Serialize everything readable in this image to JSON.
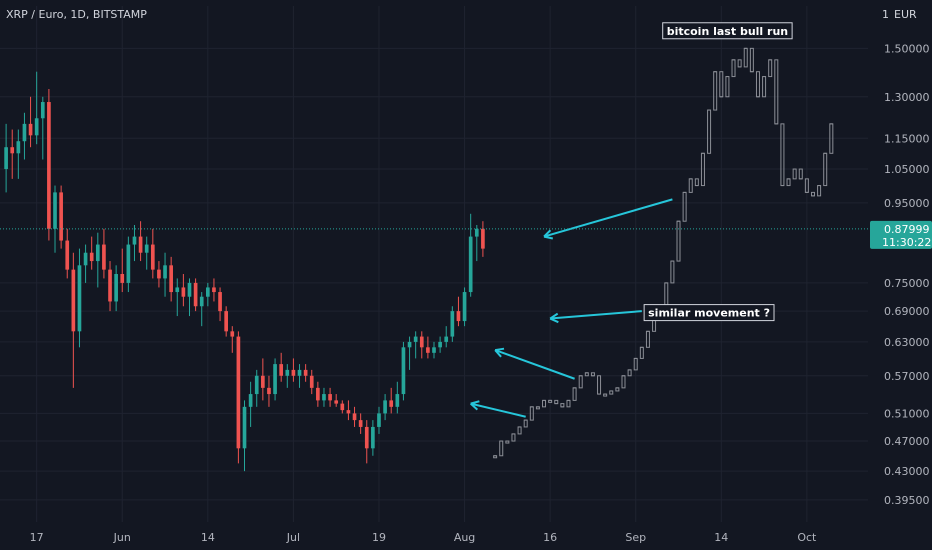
{
  "header": {
    "title": "XRP / Euro, 1D, BITSTAMP"
  },
  "currency_label": "EUR",
  "current_price": {
    "value": "0.87999",
    "countdown": "11:30:22",
    "color": "#26a69a"
  },
  "colors": {
    "background": "#131722",
    "grid": "#1f2330",
    "up": "#26a69a",
    "down": "#ef5350",
    "overlay": "#8b8e96",
    "arrow": "#26c6da"
  },
  "annotations": [
    {
      "id": "bull",
      "text": "bitcoin last bull run"
    },
    {
      "id": "similar",
      "text": "similar movement  ?"
    }
  ],
  "chart_data": {
    "type": "candlestick",
    "scale": "logarithmic",
    "title": "XRP / Euro, 1D, BITSTAMP",
    "ylim": [
      0.37,
      1.7
    ],
    "x_ticks": [
      "17",
      "Jun",
      "14",
      "Jul",
      "19",
      "Aug",
      "16",
      "Sep",
      "14",
      "Oct"
    ],
    "y_ticks": [
      "1.50000",
      "1.30000",
      "1.15000",
      "1.05000",
      "0.95000",
      "0.75000",
      "0.69000",
      "0.63000",
      "0.57000",
      "0.51000",
      "0.47000",
      "0.43000",
      "0.39500"
    ],
    "y_tick_values": [
      1.5,
      1.3,
      1.15,
      1.05,
      0.95,
      0.75,
      0.69,
      0.63,
      0.57,
      0.51,
      0.47,
      0.43,
      0.395
    ],
    "x_range_days": [
      -6,
      136
    ],
    "x_tick_days": [
      0,
      14,
      28,
      42,
      56,
      70,
      84,
      98,
      112,
      126
    ],
    "candles": [
      {
        "o": 1.05,
        "h": 1.2,
        "l": 0.98,
        "c": 1.12
      },
      {
        "o": 1.12,
        "h": 1.18,
        "l": 1.02,
        "c": 1.1
      },
      {
        "o": 1.1,
        "h": 1.18,
        "l": 1.02,
        "c": 1.14
      },
      {
        "o": 1.14,
        "h": 1.24,
        "l": 1.08,
        "c": 1.2
      },
      {
        "o": 1.2,
        "h": 1.3,
        "l": 1.12,
        "c": 1.16
      },
      {
        "o": 1.16,
        "h": 1.4,
        "l": 1.13,
        "c": 1.22
      },
      {
        "o": 1.22,
        "h": 1.3,
        "l": 1.08,
        "c": 1.28
      },
      {
        "o": 1.28,
        "h": 1.33,
        "l": 0.85,
        "c": 0.88
      },
      {
        "o": 0.88,
        "h": 1.0,
        "l": 0.82,
        "c": 0.98
      },
      {
        "o": 0.98,
        "h": 1.0,
        "l": 0.83,
        "c": 0.85
      },
      {
        "o": 0.85,
        "h": 0.88,
        "l": 0.76,
        "c": 0.78
      },
      {
        "o": 0.78,
        "h": 0.82,
        "l": 0.55,
        "c": 0.65
      },
      {
        "o": 0.65,
        "h": 0.83,
        "l": 0.62,
        "c": 0.79
      },
      {
        "o": 0.79,
        "h": 0.84,
        "l": 0.75,
        "c": 0.82
      },
      {
        "o": 0.82,
        "h": 0.86,
        "l": 0.78,
        "c": 0.8
      },
      {
        "o": 0.8,
        "h": 0.87,
        "l": 0.74,
        "c": 0.84
      },
      {
        "o": 0.84,
        "h": 0.88,
        "l": 0.76,
        "c": 0.78
      },
      {
        "o": 0.78,
        "h": 0.8,
        "l": 0.69,
        "c": 0.71
      },
      {
        "o": 0.71,
        "h": 0.79,
        "l": 0.69,
        "c": 0.77
      },
      {
        "o": 0.77,
        "h": 0.83,
        "l": 0.73,
        "c": 0.75
      },
      {
        "o": 0.75,
        "h": 0.86,
        "l": 0.73,
        "c": 0.84
      },
      {
        "o": 0.84,
        "h": 0.89,
        "l": 0.8,
        "c": 0.86
      },
      {
        "o": 0.86,
        "h": 0.9,
        "l": 0.8,
        "c": 0.82
      },
      {
        "o": 0.82,
        "h": 0.86,
        "l": 0.78,
        "c": 0.84
      },
      {
        "o": 0.84,
        "h": 0.88,
        "l": 0.76,
        "c": 0.78
      },
      {
        "o": 0.78,
        "h": 0.8,
        "l": 0.74,
        "c": 0.76
      },
      {
        "o": 0.76,
        "h": 0.82,
        "l": 0.72,
        "c": 0.79
      },
      {
        "o": 0.79,
        "h": 0.81,
        "l": 0.71,
        "c": 0.73
      },
      {
        "o": 0.73,
        "h": 0.76,
        "l": 0.68,
        "c": 0.74
      },
      {
        "o": 0.74,
        "h": 0.77,
        "l": 0.7,
        "c": 0.72
      },
      {
        "o": 0.72,
        "h": 0.76,
        "l": 0.68,
        "c": 0.75
      },
      {
        "o": 0.75,
        "h": 0.76,
        "l": 0.69,
        "c": 0.7
      },
      {
        "o": 0.7,
        "h": 0.73,
        "l": 0.66,
        "c": 0.72
      },
      {
        "o": 0.72,
        "h": 0.75,
        "l": 0.7,
        "c": 0.74
      },
      {
        "o": 0.74,
        "h": 0.76,
        "l": 0.71,
        "c": 0.73
      },
      {
        "o": 0.73,
        "h": 0.74,
        "l": 0.67,
        "c": 0.69
      },
      {
        "o": 0.69,
        "h": 0.7,
        "l": 0.64,
        "c": 0.65
      },
      {
        "o": 0.65,
        "h": 0.66,
        "l": 0.61,
        "c": 0.64
      },
      {
        "o": 0.64,
        "h": 0.65,
        "l": 0.44,
        "c": 0.46
      },
      {
        "o": 0.46,
        "h": 0.53,
        "l": 0.43,
        "c": 0.52
      },
      {
        "o": 0.52,
        "h": 0.56,
        "l": 0.49,
        "c": 0.54
      },
      {
        "o": 0.54,
        "h": 0.58,
        "l": 0.52,
        "c": 0.57
      },
      {
        "o": 0.57,
        "h": 0.6,
        "l": 0.53,
        "c": 0.55
      },
      {
        "o": 0.55,
        "h": 0.57,
        "l": 0.52,
        "c": 0.54
      },
      {
        "o": 0.54,
        "h": 0.6,
        "l": 0.53,
        "c": 0.59
      },
      {
        "o": 0.59,
        "h": 0.61,
        "l": 0.56,
        "c": 0.57
      },
      {
        "o": 0.57,
        "h": 0.59,
        "l": 0.55,
        "c": 0.58
      },
      {
        "o": 0.58,
        "h": 0.6,
        "l": 0.56,
        "c": 0.57
      },
      {
        "o": 0.57,
        "h": 0.59,
        "l": 0.55,
        "c": 0.58
      },
      {
        "o": 0.58,
        "h": 0.59,
        "l": 0.56,
        "c": 0.57
      },
      {
        "o": 0.57,
        "h": 0.58,
        "l": 0.54,
        "c": 0.55
      },
      {
        "o": 0.55,
        "h": 0.56,
        "l": 0.52,
        "c": 0.53
      },
      {
        "o": 0.53,
        "h": 0.55,
        "l": 0.52,
        "c": 0.54
      },
      {
        "o": 0.54,
        "h": 0.55,
        "l": 0.52,
        "c": 0.53
      },
      {
        "o": 0.53,
        "h": 0.54,
        "l": 0.52,
        "c": 0.525
      },
      {
        "o": 0.525,
        "h": 0.53,
        "l": 0.51,
        "c": 0.515
      },
      {
        "o": 0.515,
        "h": 0.53,
        "l": 0.5,
        "c": 0.51
      },
      {
        "o": 0.51,
        "h": 0.52,
        "l": 0.49,
        "c": 0.5
      },
      {
        "o": 0.5,
        "h": 0.51,
        "l": 0.48,
        "c": 0.49
      },
      {
        "o": 0.49,
        "h": 0.5,
        "l": 0.44,
        "c": 0.46
      },
      {
        "o": 0.46,
        "h": 0.5,
        "l": 0.45,
        "c": 0.49
      },
      {
        "o": 0.49,
        "h": 0.52,
        "l": 0.48,
        "c": 0.51
      },
      {
        "o": 0.51,
        "h": 0.54,
        "l": 0.5,
        "c": 0.53
      },
      {
        "o": 0.53,
        "h": 0.55,
        "l": 0.51,
        "c": 0.52
      },
      {
        "o": 0.52,
        "h": 0.56,
        "l": 0.51,
        "c": 0.54
      },
      {
        "o": 0.54,
        "h": 0.63,
        "l": 0.53,
        "c": 0.62
      },
      {
        "o": 0.62,
        "h": 0.64,
        "l": 0.58,
        "c": 0.63
      },
      {
        "o": 0.63,
        "h": 0.65,
        "l": 0.6,
        "c": 0.64
      },
      {
        "o": 0.64,
        "h": 0.65,
        "l": 0.6,
        "c": 0.62
      },
      {
        "o": 0.62,
        "h": 0.64,
        "l": 0.6,
        "c": 0.61
      },
      {
        "o": 0.61,
        "h": 0.63,
        "l": 0.6,
        "c": 0.62
      },
      {
        "o": 0.62,
        "h": 0.64,
        "l": 0.61,
        "c": 0.63
      },
      {
        "o": 0.63,
        "h": 0.66,
        "l": 0.62,
        "c": 0.64
      },
      {
        "o": 0.64,
        "h": 0.7,
        "l": 0.63,
        "c": 0.69
      },
      {
        "o": 0.69,
        "h": 0.72,
        "l": 0.66,
        "c": 0.67
      },
      {
        "o": 0.67,
        "h": 0.74,
        "l": 0.66,
        "c": 0.73
      },
      {
        "o": 0.73,
        "h": 0.92,
        "l": 0.72,
        "c": 0.86
      },
      {
        "o": 0.86,
        "h": 0.89,
        "l": 0.8,
        "c": 0.88
      },
      {
        "o": 0.88,
        "h": 0.9,
        "l": 0.81,
        "c": 0.83
      }
    ],
    "overlay_path": [
      {
        "x": 75,
        "y": 0.45
      },
      {
        "x": 76,
        "y": 0.47
      },
      {
        "x": 77,
        "y": 0.47
      },
      {
        "x": 78,
        "y": 0.48
      },
      {
        "x": 79,
        "y": 0.49
      },
      {
        "x": 80,
        "y": 0.5
      },
      {
        "x": 81,
        "y": 0.52
      },
      {
        "x": 82,
        "y": 0.52
      },
      {
        "x": 83,
        "y": 0.53
      },
      {
        "x": 84,
        "y": 0.53
      },
      {
        "x": 85,
        "y": 0.525
      },
      {
        "x": 86,
        "y": 0.52
      },
      {
        "x": 87,
        "y": 0.53
      },
      {
        "x": 88,
        "y": 0.55
      },
      {
        "x": 89,
        "y": 0.57
      },
      {
        "x": 90,
        "y": 0.575
      },
      {
        "x": 91,
        "y": 0.57
      },
      {
        "x": 92,
        "y": 0.54
      },
      {
        "x": 93,
        "y": 0.54
      },
      {
        "x": 94,
        "y": 0.545
      },
      {
        "x": 95,
        "y": 0.55
      },
      {
        "x": 96,
        "y": 0.57
      },
      {
        "x": 97,
        "y": 0.58
      },
      {
        "x": 98,
        "y": 0.6
      },
      {
        "x": 99,
        "y": 0.62
      },
      {
        "x": 100,
        "y": 0.65
      },
      {
        "x": 101,
        "y": 0.69
      },
      {
        "x": 102,
        "y": 0.7
      },
      {
        "x": 103,
        "y": 0.75
      },
      {
        "x": 104,
        "y": 0.8
      },
      {
        "x": 105,
        "y": 0.9
      },
      {
        "x": 106,
        "y": 0.98
      },
      {
        "x": 107,
        "y": 1.02
      },
      {
        "x": 108,
        "y": 1.0
      },
      {
        "x": 109,
        "y": 1.1
      },
      {
        "x": 110,
        "y": 1.25
      },
      {
        "x": 111,
        "y": 1.4
      },
      {
        "x": 112,
        "y": 1.3
      },
      {
        "x": 113,
        "y": 1.38
      },
      {
        "x": 114,
        "y": 1.45
      },
      {
        "x": 115,
        "y": 1.42
      },
      {
        "x": 116,
        "y": 1.5
      },
      {
        "x": 117,
        "y": 1.4
      },
      {
        "x": 118,
        "y": 1.3
      },
      {
        "x": 119,
        "y": 1.38
      },
      {
        "x": 120,
        "y": 1.45
      },
      {
        "x": 121,
        "y": 1.2
      },
      {
        "x": 122,
        "y": 1.0
      },
      {
        "x": 123,
        "y": 1.02
      },
      {
        "x": 124,
        "y": 1.05
      },
      {
        "x": 125,
        "y": 1.02
      },
      {
        "x": 126,
        "y": 0.98
      },
      {
        "x": 127,
        "y": 0.97
      },
      {
        "x": 128,
        "y": 1.0
      },
      {
        "x": 129,
        "y": 1.1
      },
      {
        "x": 130,
        "y": 1.2
      }
    ],
    "arrows": [
      {
        "from": [
          104,
          0.96
        ],
        "to": [
          83,
          0.86
        ]
      },
      {
        "from": [
          99,
          0.69
        ],
        "to": [
          84,
          0.675
        ]
      },
      {
        "from": [
          88,
          0.565
        ],
        "to": [
          75,
          0.615
        ]
      },
      {
        "from": [
          80,
          0.505
        ],
        "to": [
          71,
          0.525
        ]
      }
    ],
    "annotation_positions": [
      {
        "id": "bull",
        "x": 113,
        "y": 1.58
      },
      {
        "id": "similar",
        "x": 110,
        "y": 0.687
      }
    ]
  }
}
